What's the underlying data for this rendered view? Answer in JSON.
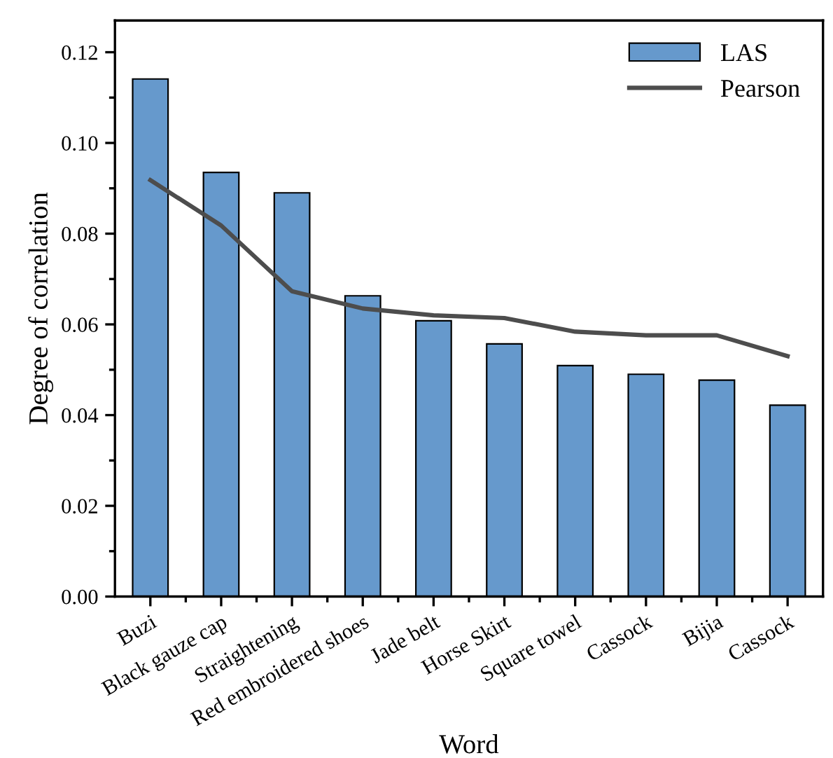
{
  "chart_data": {
    "type": "bar",
    "xlabel": "Word",
    "ylabel": "Degree of correlation",
    "categories": [
      "Buzi",
      "Black gauze cap",
      "Straightening",
      "Red embroidered shoes",
      "Jade belt",
      "Horse Skirt",
      "Square towel",
      "Cassock",
      "Bijia",
      "Cassock"
    ],
    "series": [
      {
        "name": "LAS",
        "color": "#6699cc",
        "values": [
          0.1141,
          0.0935,
          0.089,
          0.0663,
          0.0608,
          0.0557,
          0.0509,
          0.049,
          0.0477,
          0.0422
        ]
      },
      {
        "name": "Pearson",
        "type": "line",
        "color": "#4d4d4d",
        "values": [
          0.0918,
          0.0818,
          0.0673,
          0.0635,
          0.062,
          0.0614,
          0.0584,
          0.0576,
          0.0576,
          0.053
        ]
      }
    ],
    "ylim": [
      0,
      0.127
    ],
    "yticks": [
      {
        "value": 0,
        "label": "0.00"
      },
      {
        "value": 0.02,
        "label": "0.02"
      },
      {
        "value": 0.04,
        "label": "0.04"
      },
      {
        "value": 0.06,
        "label": "0.06"
      },
      {
        "value": 0.08,
        "label": "0.08"
      },
      {
        "value": 0.1,
        "label": "0.10"
      },
      {
        "value": 0.12,
        "label": "0.12"
      }
    ],
    "legend": "top right",
    "marker": "none",
    "line_style": "solid"
  }
}
